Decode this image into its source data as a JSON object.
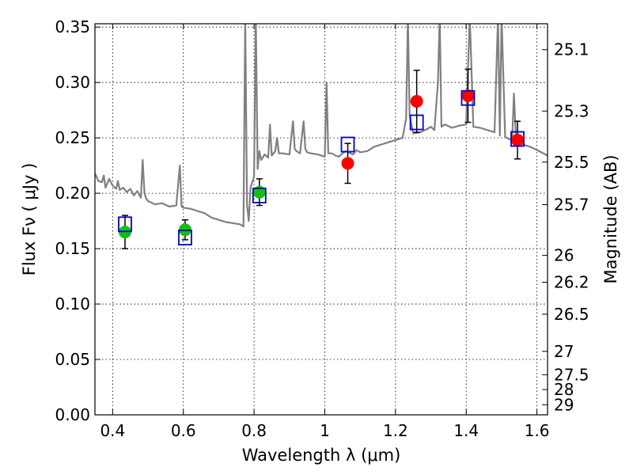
{
  "chart_data": {
    "type": "scatter",
    "xlabel": "Wavelength  λ (μm)",
    "ylabel": "Flux  Fν  ( μJy )",
    "y2label": "Magnitude (AB)",
    "xlim": [
      0.35,
      1.63
    ],
    "ylim": [
      0,
      0.353
    ],
    "grid": true,
    "x_ticks": [
      0.4,
      0.6,
      0.8,
      1.0,
      1.2,
      1.4,
      1.6
    ],
    "x_tick_labels": [
      "0.4",
      "0.6",
      "0.8",
      "1",
      "1.2",
      "1.4",
      "1.6"
    ],
    "y_ticks": [
      0,
      0.05,
      0.1,
      0.15,
      0.2,
      0.25,
      0.3,
      0.35
    ],
    "y_tick_labels": [
      "0.00",
      "0.05",
      "0.10",
      "0.15",
      "0.20",
      "0.25",
      "0.30",
      "0.35"
    ],
    "mag_ticks": [
      {
        "label": "25.1",
        "flux": 0.3296
      },
      {
        "label": "25.3",
        "flux": 0.2742
      },
      {
        "label": "25.5",
        "flux": 0.2281
      },
      {
        "label": "25.7",
        "flux": 0.1897
      },
      {
        "label": "26",
        "flux": 0.1439
      },
      {
        "label": "26.2",
        "flux": 0.1197
      },
      {
        "label": "26.5",
        "flux": 0.0908
      },
      {
        "label": "27",
        "flux": 0.0573
      },
      {
        "label": "27.5",
        "flux": 0.0362
      },
      {
        "label": "28",
        "flux": 0.0228
      },
      {
        "label": "29",
        "flux": 0.0091
      }
    ],
    "colors": {
      "spectrum": "#808080",
      "green_points": "#10c010",
      "red_points": "#ff0000",
      "model_boxes": "#0000cc",
      "errorbars": "#000000"
    },
    "series": [
      {
        "kind": "errorbar_points",
        "color": "#10c010",
        "points": [
          {
            "x": 0.435,
            "y": 0.165,
            "err": 0.015
          },
          {
            "x": 0.605,
            "y": 0.167,
            "err": 0.009
          },
          {
            "x": 0.815,
            "y": 0.201,
            "err": 0.012
          }
        ]
      },
      {
        "kind": "errorbar_points",
        "color": "#ff0000",
        "points": [
          {
            "x": 1.065,
            "y": 0.227,
            "err": 0.018
          },
          {
            "x": 1.26,
            "y": 0.283,
            "err": 0.028
          },
          {
            "x": 1.405,
            "y": 0.288,
            "err": 0.024
          },
          {
            "x": 1.545,
            "y": 0.248,
            "err": 0.017
          }
        ]
      },
      {
        "kind": "model_boxes",
        "color": "#0000cc",
        "points": [
          {
            "x": 0.435,
            "y": 0.172
          },
          {
            "x": 0.605,
            "y": 0.16
          },
          {
            "x": 0.815,
            "y": 0.198
          },
          {
            "x": 1.065,
            "y": 0.244
          },
          {
            "x": 1.26,
            "y": 0.264
          },
          {
            "x": 1.405,
            "y": 0.286
          },
          {
            "x": 1.545,
            "y": 0.249
          }
        ]
      },
      {
        "kind": "spectrum",
        "color": "#808080",
        "x": [
          0.35,
          0.36,
          0.37,
          0.375,
          0.38,
          0.39,
          0.4,
          0.41,
          0.415,
          0.42,
          0.43,
          0.44,
          0.45,
          0.46,
          0.47,
          0.48,
          0.485,
          0.49,
          0.495,
          0.5,
          0.52,
          0.54,
          0.56,
          0.58,
          0.59,
          0.595,
          0.6,
          0.62,
          0.64,
          0.66,
          0.68,
          0.7,
          0.72,
          0.74,
          0.76,
          0.77,
          0.775,
          0.78,
          0.785,
          0.79,
          0.8,
          0.805,
          0.81,
          0.815,
          0.82,
          0.83,
          0.84,
          0.845,
          0.85,
          0.86,
          0.865,
          0.87,
          0.88,
          0.9,
          0.91,
          0.915,
          0.92,
          0.93,
          0.94,
          0.945,
          0.95,
          0.96,
          0.98,
          1.0,
          1.005,
          1.01,
          1.02,
          1.03,
          1.04,
          1.05,
          1.06,
          1.08,
          1.09,
          1.1,
          1.12,
          1.14,
          1.16,
          1.18,
          1.2,
          1.22,
          1.23,
          1.235,
          1.24,
          1.25,
          1.27,
          1.29,
          1.3,
          1.31,
          1.32,
          1.325,
          1.33,
          1.34,
          1.36,
          1.38,
          1.4,
          1.41,
          1.42,
          1.44,
          1.46,
          1.48,
          1.49,
          1.495,
          1.5,
          1.51,
          1.52,
          1.53,
          1.535,
          1.54,
          1.55,
          1.56,
          1.58,
          1.6,
          1.63
        ],
        "y": [
          0.218,
          0.211,
          0.21,
          0.216,
          0.205,
          0.213,
          0.207,
          0.204,
          0.211,
          0.203,
          0.205,
          0.201,
          0.204,
          0.198,
          0.202,
          0.196,
          0.23,
          0.2,
          0.195,
          0.193,
          0.19,
          0.191,
          0.188,
          0.189,
          0.225,
          0.188,
          0.187,
          0.186,
          0.184,
          0.182,
          0.178,
          0.176,
          0.174,
          0.173,
          0.172,
          0.17,
          0.36,
          0.19,
          0.175,
          0.205,
          0.215,
          0.36,
          0.222,
          0.238,
          0.23,
          0.235,
          0.232,
          0.262,
          0.234,
          0.238,
          0.25,
          0.236,
          0.236,
          0.235,
          0.265,
          0.24,
          0.238,
          0.236,
          0.265,
          0.24,
          0.237,
          0.236,
          0.235,
          0.233,
          0.3,
          0.236,
          0.236,
          0.234,
          0.233,
          0.236,
          0.238,
          0.235,
          0.239,
          0.237,
          0.238,
          0.242,
          0.244,
          0.246,
          0.248,
          0.25,
          0.268,
          0.36,
          0.27,
          0.254,
          0.255,
          0.258,
          0.26,
          0.257,
          0.3,
          0.36,
          0.26,
          0.262,
          0.259,
          0.261,
          0.262,
          0.36,
          0.26,
          0.259,
          0.257,
          0.255,
          0.36,
          0.252,
          0.36,
          0.251,
          0.249,
          0.248,
          0.29,
          0.254,
          0.246,
          0.244,
          0.242,
          0.239,
          0.234
        ]
      }
    ]
  }
}
